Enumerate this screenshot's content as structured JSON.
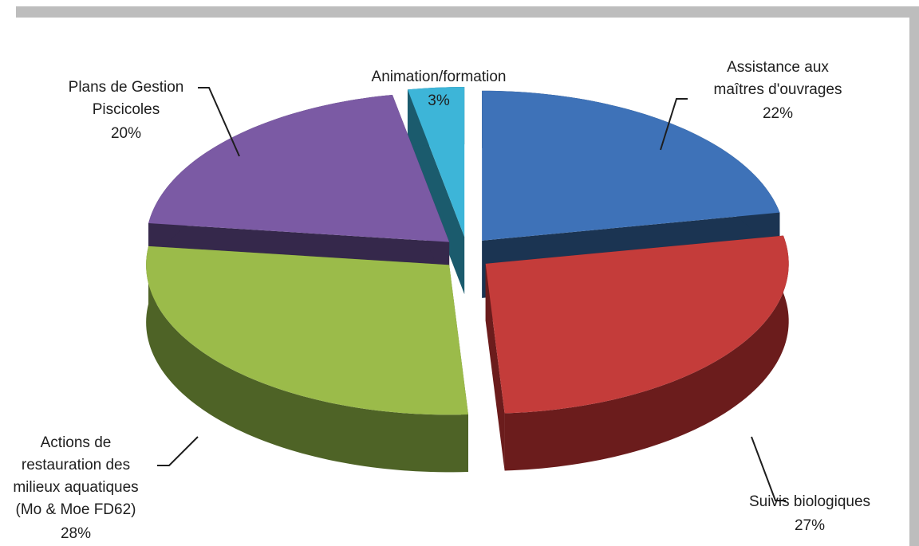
{
  "chart_data": {
    "type": "pie",
    "categories": [
      [
        "Assistance aux",
        "maîtres d'ouvrages"
      ],
      [
        "Suivis biologiques"
      ],
      [
        "Actions de",
        "restauration des",
        "milieux aquatiques",
        "(Mo & Moe FD62)"
      ],
      [
        "Plans de Gestion",
        "Piscicoles"
      ],
      [
        "Animation/formation"
      ]
    ],
    "values": [
      22,
      27,
      28,
      20,
      3
    ],
    "value_labels": [
      "22%",
      "27%",
      "28%",
      "20%",
      "3%"
    ],
    "colors": [
      "#3e72b8",
      "#c43c3a",
      "#9bbb4a",
      "#7b5aa4",
      "#3db5d8"
    ],
    "side_colors": [
      "#1b3452",
      "#6b1c1c",
      "#4e6326",
      "#35284b",
      "#1b5b6d"
    ]
  }
}
